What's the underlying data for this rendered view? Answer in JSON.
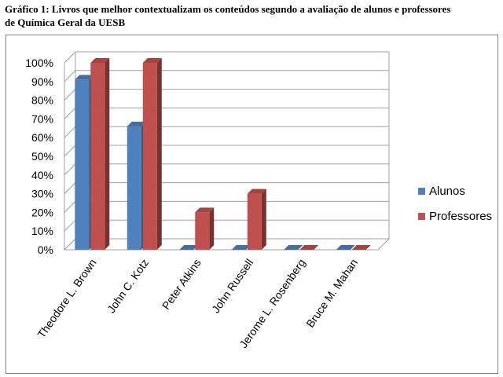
{
  "title_line1": "Gráfico 1: Livros que melhor contextualizam os conteúdos segundo a avaliação de alunos e professores",
  "title_line2": "de Química Geral da UESB",
  "chart_data": {
    "type": "bar",
    "categories": [
      "Theodore L. Brown",
      "John C. Kotz",
      "Peter Atkins",
      "John Russell",
      "Jerome L. Rosenberg",
      "Bruce M. Mahan"
    ],
    "series": [
      {
        "name": "Alunos",
        "values": [
          91,
          66,
          0,
          0,
          0,
          0
        ],
        "color": "#4f81bd"
      },
      {
        "name": "Professores",
        "values": [
          100,
          100,
          20,
          30,
          0,
          0
        ],
        "color": "#c0504d"
      }
    ],
    "ylim": [
      0,
      100
    ],
    "yticks": [
      "0%",
      "10%",
      "20%",
      "30%",
      "40%",
      "50%",
      "60%",
      "70%",
      "80%",
      "90%",
      "100%"
    ],
    "grid": true,
    "three_d": true,
    "legend": "right"
  }
}
